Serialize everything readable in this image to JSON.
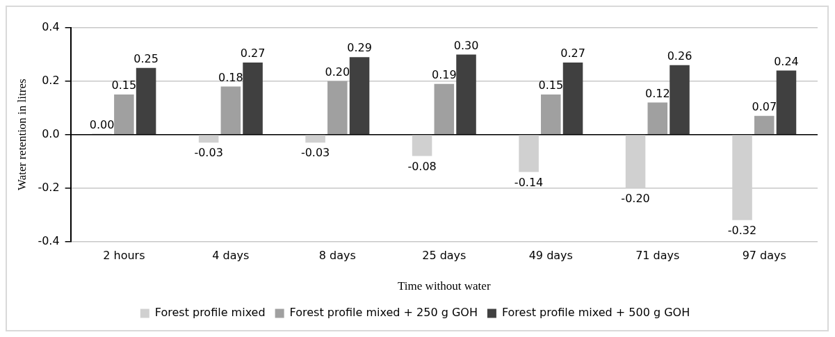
{
  "chart_data": {
    "type": "bar",
    "xlabel": "Time without water",
    "ylabel": "Water retention in litres",
    "categories": [
      "2 hours",
      "4 days",
      "8 days",
      "25 days",
      "49 days",
      "71 days",
      "97 days"
    ],
    "series": [
      {
        "name": "Forest profile mixed",
        "color": "#d0d0d0",
        "values": [
          0.003,
          -0.03,
          -0.03,
          -0.08,
          -0.14,
          -0.2,
          -0.32
        ],
        "value_labels": [
          "0.00",
          "-0.03",
          "-0.03",
          "-0.08",
          "-0.14",
          "-0.20",
          "-0.32"
        ]
      },
      {
        "name": "Forest profile mixed + 250 g GOH",
        "color": "#a0a0a0",
        "values": [
          0.15,
          0.18,
          0.2,
          0.19,
          0.15,
          0.12,
          0.07
        ],
        "value_labels": [
          "0.15",
          "0.18",
          "0.20",
          "0.19",
          "0.15",
          "0.12",
          "0.07"
        ]
      },
      {
        "name": "Forest profile mixed + 500 g GOH",
        "color": "#404040",
        "values": [
          0.25,
          0.27,
          0.29,
          0.3,
          0.27,
          0.26,
          0.24
        ],
        "value_labels": [
          "0.25",
          "0.27",
          "0.29",
          "0.30",
          "0.27",
          "0.26",
          "0.24"
        ]
      }
    ],
    "ylim": [
      -0.4,
      0.4
    ],
    "yticks": [
      -0.4,
      -0.2,
      {
        "value": 0,
        "label": "0.0"
      },
      0.2,
      0.4
    ],
    "grid": "y",
    "legend": "bottom"
  }
}
